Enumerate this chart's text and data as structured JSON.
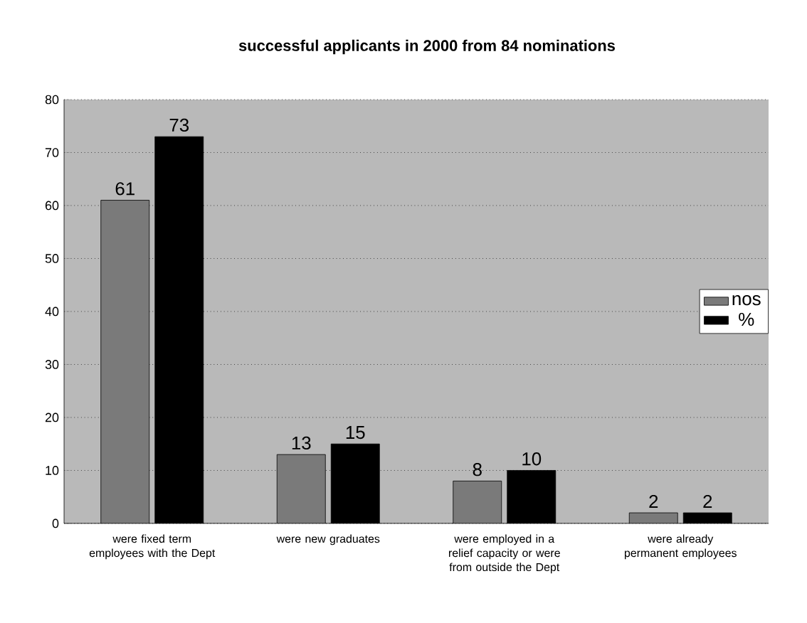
{
  "chart_data": {
    "type": "bar",
    "title": "successful applicants in 2000 from 84 nominations",
    "categories": [
      "were fixed term employees with the Dept",
      "were new graduates",
      "were employed in a relief capacity or were from outside the Dept",
      "were already permanent employees"
    ],
    "series": [
      {
        "name": "nos",
        "color": "#7a7a7a",
        "values": [
          61,
          13,
          8,
          2
        ]
      },
      {
        "name": "%",
        "color": "#000000",
        "values": [
          73,
          15,
          10,
          2
        ]
      }
    ],
    "ylim": [
      0,
      80
    ],
    "yticks": [
      0,
      10,
      20,
      30,
      40,
      50,
      60,
      70,
      80
    ],
    "grid": "y",
    "legend": "right",
    "data_labels": true
  }
}
